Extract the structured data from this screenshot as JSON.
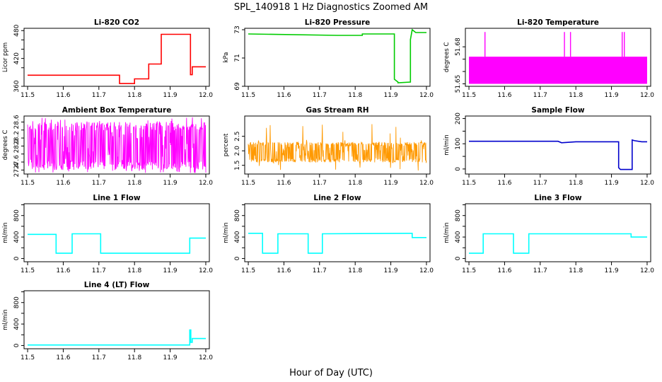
{
  "figure": {
    "title": "SPL_140918  1 Hz Diagnostics Zoomed AM",
    "xlabel": "Hour of Day (UTC)"
  },
  "chart_data": [
    {
      "type": "line",
      "title": "Li-820 CO2",
      "ylabel": "Licor ppm",
      "color": "#ff0000",
      "xlim": [
        11.49,
        12.01
      ],
      "ylim": [
        360,
        485
      ],
      "xticks": [
        "11.5",
        "11.6",
        "11.7",
        "11.8",
        "11.9",
        "12.0"
      ],
      "yticks": [
        "360",
        "420",
        "480"
      ],
      "yticks_minor": [
        400,
        440,
        460
      ],
      "x": [
        11.5,
        11.758,
        11.758,
        11.8,
        11.8,
        11.84,
        11.84,
        11.875,
        11.875,
        11.957,
        11.957,
        11.962,
        11.962,
        12.0
      ],
      "y": [
        384,
        384,
        366,
        366,
        376,
        376,
        408,
        408,
        472,
        472,
        385,
        385,
        402,
        402
      ]
    },
    {
      "type": "line",
      "title": "Li-820 Pressure",
      "ylabel": "kPa",
      "color": "#00cc00",
      "xlim": [
        11.49,
        12.01
      ],
      "ylim": [
        69,
        73.1
      ],
      "xticks": [
        "11.5",
        "11.6",
        "11.7",
        "11.8",
        "11.9",
        "12.0"
      ],
      "yticks": [
        "69",
        "71",
        "73"
      ],
      "x": [
        11.5,
        11.75,
        11.75,
        11.82,
        11.82,
        11.91,
        11.91,
        11.92,
        11.92,
        11.955,
        11.955,
        11.96,
        11.97,
        12.0
      ],
      "y": [
        72.7,
        72.6,
        72.6,
        72.6,
        72.7,
        72.7,
        69.5,
        69.3,
        69.25,
        69.3,
        72.3,
        73.0,
        72.8,
        72.8
      ]
    },
    {
      "type": "line",
      "title": "Li-820 Temperature",
      "ylabel": "degrees C",
      "color": "#ff00ff",
      "xlim": [
        11.49,
        12.01
      ],
      "ylim": [
        51.648,
        51.695
      ],
      "xticks": [
        "11.5",
        "11.6",
        "11.7",
        "11.8",
        "11.9",
        "12.0"
      ],
      "yticks": [
        "51.65",
        "51.68"
      ],
      "yticks_minor": [
        51.66,
        51.67
      ],
      "band_low": 51.65,
      "band_high": 51.672,
      "spikes_x": [
        11.545,
        11.768,
        11.785,
        11.93,
        11.936
      ],
      "spike_high": 51.692
    },
    {
      "type": "line",
      "title": "Ambient Box Temperature",
      "ylabel": "degrees C",
      "color": "#ff00ff",
      "xlim": [
        11.49,
        12.01
      ],
      "ylim": [
        27.3,
        28.75
      ],
      "xticks": [
        "11.5",
        "11.6",
        "11.7",
        "11.8",
        "11.9",
        "12.0"
      ],
      "yticks": [
        "27.4",
        "27.6",
        "28.0",
        "28.2",
        "28.6"
      ],
      "yticks_minor": [
        27.8,
        28.4
      ],
      "noise_low": 27.4,
      "noise_high": 28.6,
      "noise_center": 28.0
    },
    {
      "type": "line",
      "title": "Gas Stream RH",
      "ylabel": "percent",
      "color": "#ff9900",
      "xlim": [
        11.49,
        12.01
      ],
      "ylim": [
        1.2,
        3.2
      ],
      "xticks": [
        "11.5",
        "11.6",
        "11.7",
        "11.8",
        "11.9",
        "12.0"
      ],
      "yticks": [
        "1.5",
        "2.0",
        "2.5"
      ],
      "noise_low": 1.6,
      "noise_high": 2.3,
      "noise_center": 1.95
    },
    {
      "type": "line",
      "title": "Sample Flow",
      "ylabel": "ml/min",
      "color": "#0000cc",
      "xlim": [
        11.49,
        12.01
      ],
      "ylim": [
        -20,
        210
      ],
      "xticks": [
        "11.5",
        "11.6",
        "11.7",
        "11.8",
        "11.9",
        "12.0"
      ],
      "yticks": [
        "0",
        "100",
        "200"
      ],
      "yticks_minor": [
        50,
        150
      ],
      "x": [
        11.5,
        11.75,
        11.76,
        11.8,
        11.92,
        11.92,
        11.925,
        11.958,
        11.958,
        11.965,
        11.985,
        12.0
      ],
      "y": [
        110,
        110,
        104,
        108,
        108,
        5,
        -2,
        -2,
        115,
        112,
        108,
        108
      ]
    },
    {
      "type": "line",
      "title": "Line 1 Flow",
      "ylabel": "ml/min",
      "color": "#00ffff",
      "xlim": [
        11.49,
        12.01
      ],
      "ylim": [
        -60,
        1020
      ],
      "xticks": [
        "11.5",
        "11.6",
        "11.7",
        "11.8",
        "11.9",
        "12.0"
      ],
      "yticks": [
        "0",
        "400",
        "800"
      ],
      "yticks_minor": [
        200,
        600,
        1000
      ],
      "x": [
        11.5,
        11.58,
        11.58,
        11.625,
        11.625,
        11.705,
        11.705,
        11.955,
        11.955,
        12.0
      ],
      "y": [
        450,
        450,
        100,
        100,
        460,
        460,
        100,
        100,
        380,
        380
      ]
    },
    {
      "type": "line",
      "title": "Line 2 Flow",
      "ylabel": "ml/min",
      "color": "#00ffff",
      "xlim": [
        11.49,
        12.01
      ],
      "ylim": [
        -60,
        1020
      ],
      "xticks": [
        "11.5",
        "11.6",
        "11.7",
        "11.8",
        "11.9",
        "12.0"
      ],
      "yticks": [
        "0",
        "400",
        "800"
      ],
      "yticks_minor": [
        200,
        600,
        1000
      ],
      "x": [
        11.5,
        11.54,
        11.54,
        11.583,
        11.583,
        11.668,
        11.668,
        11.708,
        11.708,
        11.95,
        11.96,
        11.96,
        12.0
      ],
      "y": [
        470,
        470,
        100,
        100,
        460,
        460,
        100,
        100,
        460,
        470,
        470,
        390,
        390
      ]
    },
    {
      "type": "line",
      "title": "Line 3 Flow",
      "ylabel": "ml/min",
      "color": "#00ffff",
      "xlim": [
        11.49,
        12.01
      ],
      "ylim": [
        -60,
        1020
      ],
      "xticks": [
        "11.5",
        "11.6",
        "11.7",
        "11.8",
        "11.9",
        "12.0"
      ],
      "yticks": [
        "0",
        "400",
        "800"
      ],
      "yticks_minor": [
        200,
        600,
        1000
      ],
      "x": [
        11.5,
        11.54,
        11.54,
        11.625,
        11.625,
        11.668,
        11.668,
        11.955,
        11.955,
        12.0
      ],
      "y": [
        100,
        100,
        460,
        460,
        100,
        100,
        460,
        460,
        400,
        400
      ]
    },
    {
      "type": "line",
      "title": "Line 4 (LT) Flow",
      "ylabel": "ml/min",
      "color": "#00ffff",
      "xlim": [
        11.49,
        12.01
      ],
      "ylim": [
        -60,
        1020
      ],
      "xticks": [
        "11.5",
        "11.6",
        "11.7",
        "11.8",
        "11.9",
        "12.0"
      ],
      "yticks": [
        "0",
        "400",
        "800"
      ],
      "yticks_minor": [
        200,
        600,
        1000
      ],
      "x": [
        11.5,
        11.955,
        11.955,
        11.958,
        11.958,
        11.962,
        11.962,
        12.0
      ],
      "y": [
        10,
        10,
        290,
        290,
        60,
        60,
        130,
        130
      ]
    }
  ]
}
